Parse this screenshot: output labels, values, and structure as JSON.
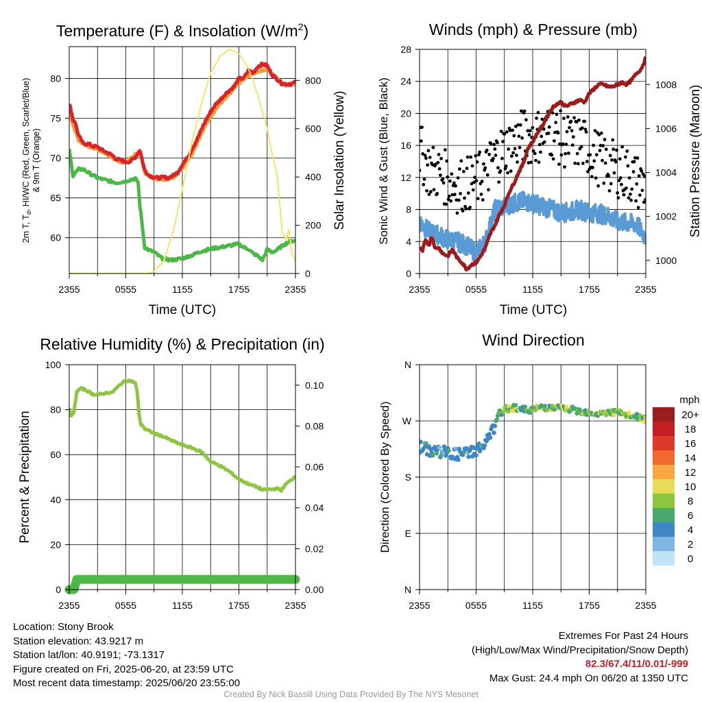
{
  "colors": {
    "temp_red": "#d7262a",
    "temp_green": "#4db848",
    "temp_orange": "#f39a3a",
    "insolation": "#f7e36a",
    "gust": "#000000",
    "wind": "#5b9bd5",
    "pressure": "#9b1c1c",
    "rh": "#8fc444",
    "precip": "#4db848",
    "extremes": "#c8202a"
  },
  "time_ticks": [
    "2355",
    "0555",
    "1155",
    "1755",
    "2355"
  ],
  "charts": {
    "temperature": {
      "title_a": "Temperature (F) & Insolation (W/m",
      "title_sup": "2",
      "title_b": ")",
      "ylabel_line1": "2m T, T",
      "ylabel_sub": "d",
      "ylabel_line1_rest": ", HI/WC (Red, Green, Scarlet/Blue)",
      "ylabel_line2": "& 9m T (Orange)",
      "y2label": "Solar Insolation (Yellow)",
      "xlabel": "Time (UTC)",
      "yticks": [
        "60",
        "65",
        "70",
        "75",
        "80"
      ],
      "y2ticks": [
        "0",
        "200",
        "400",
        "600",
        "800"
      ]
    },
    "winds": {
      "title": "Winds (mph) & Pressure (mb)",
      "ylabel": "Sonic Wind & Gust (Blue, Black)",
      "y2label": "Station Pressure (Maroon)",
      "xlabel": "Time (UTC)",
      "yticks": [
        "0",
        "4",
        "8",
        "12",
        "16",
        "20",
        "24",
        "28"
      ],
      "y2ticks": [
        "1000",
        "1002",
        "1004",
        "1006",
        "1008"
      ]
    },
    "humidity": {
      "title": "Relative Humidity (%) & Precipitation (in)",
      "ylabel": "Percent & Precipitation",
      "yticks": [
        "0",
        "20",
        "40",
        "60",
        "80",
        "100"
      ],
      "y2ticks": [
        "0.00",
        "0.02",
        "0.04",
        "0.06",
        "0.08",
        "0.10"
      ]
    },
    "direction": {
      "title": "Wind Direction",
      "ylabel": "Direction (Colored By Speed)",
      "yticks": [
        "N",
        "E",
        "S",
        "W",
        "N"
      ],
      "legend_title": "mph",
      "legend_labels": [
        "20+",
        "18",
        "16",
        "14",
        "12",
        "10",
        "8",
        "6",
        "4",
        "2",
        "0"
      ],
      "legend_colors": [
        "#9b1c1c",
        "#c21f24",
        "#dd3b2a",
        "#ef6a2c",
        "#f8a642",
        "#e8dc56",
        "#8cc63f",
        "#49a86e",
        "#3f86c4",
        "#7fb7e3",
        "#bfe3f7"
      ]
    }
  },
  "chart_data": [
    {
      "type": "line",
      "name": "temperature",
      "x_range_hours": [
        0,
        24
      ],
      "ylim": [
        55.5,
        84
      ],
      "y2lim": [
        0,
        940
      ],
      "series": [
        {
          "values_x": [
            0,
            0.15,
            0.4,
            0.6,
            1,
            1.5,
            2,
            2.5,
            3,
            3.5,
            4,
            4.5,
            5,
            5.5,
            6,
            6.5,
            7,
            7.5,
            8,
            8.5,
            9,
            9.5,
            10,
            10.5,
            11,
            11.5,
            12,
            12.5,
            13,
            13.5,
            14,
            14.5,
            15,
            15.5,
            16,
            16.5,
            17,
            17.5,
            18,
            18.5,
            19,
            19.5,
            20,
            20.5,
            21,
            21.5,
            22,
            22.5,
            23,
            23.5,
            24
          ],
          "values_y": [
            76.7,
            76.3,
            74.8,
            74.6,
            72.8,
            71.8,
            71.8,
            71.5,
            71.4,
            71.0,
            70.7,
            70.4,
            69.9,
            69.7,
            69.5,
            69.6,
            70.1,
            71.0,
            68.5,
            67.8,
            67.6,
            67.5,
            67.6,
            67.5,
            67.8,
            68.2,
            69.2,
            70.0,
            71.1,
            72.2,
            73.5,
            74.8,
            75.8,
            76.7,
            77.3,
            78.0,
            78.5,
            79.0,
            80.0,
            80.0,
            81.0,
            80.7,
            81.5,
            81.8,
            81.6,
            80.5,
            80.0,
            79.4,
            79.3,
            79.3,
            79.5
          ]
        },
        {
          "values_x": [
            0,
            0.4,
            1,
            1.5,
            2,
            3,
            4,
            5,
            6,
            6.5,
            7,
            7.3,
            7.5,
            7.8,
            8,
            8.5,
            9,
            9.5,
            10,
            11,
            12,
            13,
            14,
            15,
            16,
            17,
            18,
            18.5,
            19,
            19.5,
            20,
            20.5,
            21,
            21.5,
            22,
            22.5,
            23,
            23.5,
            24
          ],
          "values_y": [
            71.0,
            67.8,
            68.6,
            68.6,
            68.2,
            67.5,
            67.2,
            66.9,
            67.1,
            67.3,
            67.4,
            67.0,
            64.0,
            61.0,
            58.8,
            58.4,
            58.2,
            57.7,
            57.3,
            57.2,
            57.4,
            57.8,
            58.3,
            58.6,
            58.8,
            59.0,
            59.2,
            58.8,
            58.6,
            58.0,
            57.7,
            57.2,
            58.5,
            58.2,
            58.4,
            58.9,
            59.3,
            59.6,
            59.6
          ]
        },
        {
          "values_x": [
            0,
            0.4,
            1,
            2,
            3,
            4,
            5,
            6,
            7,
            7.5,
            8,
            9,
            10,
            11,
            12,
            13,
            14,
            15,
            16,
            17,
            18,
            19,
            20,
            21,
            22,
            23,
            24
          ],
          "values_y": [
            76.0,
            74.2,
            72.2,
            71.5,
            71.1,
            70.5,
            69.7,
            69.4,
            70.5,
            70.8,
            68.2,
            67.4,
            67.3,
            67.5,
            68.8,
            70.5,
            73.0,
            75.3,
            76.8,
            78.0,
            79.4,
            80.3,
            80.9,
            81.2,
            80.0,
            79.2,
            79.4
          ]
        },
        {
          "values_x": [
            0,
            1.5,
            3.5,
            6.5,
            7.5,
            8.5,
            9,
            10,
            11,
            12,
            13,
            14,
            15,
            16,
            17,
            18,
            19,
            20,
            21,
            21.6,
            22,
            22.3,
            22.6,
            23,
            23.3,
            23.6,
            24
          ],
          "values_y": [
            0,
            0,
            0,
            0,
            0,
            0,
            10,
            50,
            170,
            350,
            540,
            700,
            830,
            900,
            930,
            910,
            850,
            740,
            600,
            480,
            420,
            300,
            170,
            140,
            180,
            90,
            50
          ]
        }
      ]
    },
    {
      "type": "line",
      "name": "winds",
      "x_range_hours": [
        0,
        24
      ],
      "ylim": [
        0,
        28
      ],
      "y2lim": [
        999.4,
        1009.6
      ],
      "series": [
        {
          "values_x": [
            0,
            1,
            2,
            3,
            4,
            5,
            6,
            7,
            8,
            9,
            10,
            11,
            12,
            13,
            14,
            15,
            16,
            17,
            18,
            19,
            20,
            21,
            22,
            23,
            24
          ],
          "values_y": [
            15.5,
            13,
            12.5,
            11.8,
            11,
            11.2,
            11.5,
            12.5,
            14.5,
            15.5,
            16.2,
            17.2,
            17,
            17.3,
            17.8,
            16.8,
            16.3,
            16.5,
            15.4,
            14.4,
            13.5,
            13,
            12.5,
            11.5,
            11
          ]
        },
        {
          "values_x": [
            0,
            1,
            2,
            3,
            4,
            5,
            5.5,
            6,
            6.5,
            7,
            7.5,
            8,
            9,
            10,
            11,
            12,
            13,
            14,
            15,
            16,
            17,
            18,
            19,
            20,
            21,
            22,
            23,
            24
          ],
          "values_y": [
            6.5,
            5.2,
            4.8,
            4.2,
            4,
            3.5,
            3.0,
            2.6,
            3.2,
            4.0,
            6.0,
            8.0,
            8.4,
            8.8,
            9.0,
            8.8,
            8.4,
            8.0,
            7.6,
            7.7,
            8.0,
            7.6,
            7.5,
            7.2,
            6.5,
            6.3,
            6.2,
            4.5
          ]
        },
        {
          "values_x": [
            0,
            0.3,
            0.6,
            1,
            1.3,
            1.7,
            2,
            2.5,
            3,
            3.5,
            4,
            4.5,
            5,
            5.5,
            6,
            6.5,
            7,
            7.5,
            8,
            8.5,
            9,
            9.5,
            10,
            10.5,
            11,
            11.5,
            12,
            12.5,
            13,
            13.5,
            14,
            14.5,
            15,
            15.5,
            16,
            16.5,
            17,
            17.5,
            18,
            18.5,
            19,
            19.5,
            20,
            20.5,
            21,
            21.5,
            22,
            22.5,
            23,
            23.5,
            24
          ],
          "values_y": [
            1000.6,
            1000.4,
            1000.9,
            1000.7,
            1001.1,
            1000.5,
            1000.6,
            1000.3,
            1000.2,
            1000.5,
            1000.1,
            999.9,
            999.6,
            999.8,
            999.9,
            1000.2,
            1000.6,
            1001.2,
            1001.6,
            1002.1,
            1002.5,
            1003.1,
            1003.5,
            1004.0,
            1004.4,
            1005.1,
            1005.4,
            1005.8,
            1006.1,
            1006.5,
            1006.9,
            1007.1,
            1007.2,
            1007.0,
            1007.1,
            1007.2,
            1007.3,
            1007.2,
            1007.6,
            1007.8,
            1008.0,
            1008.0,
            1007.9,
            1007.9,
            1008.0,
            1008.1,
            1008.0,
            1008.2,
            1008.5,
            1008.7,
            1009.2
          ]
        }
      ]
    },
    {
      "type": "line",
      "name": "humidity",
      "x_range_hours": [
        0,
        24
      ],
      "ylim": [
        0,
        100
      ],
      "y2lim": [
        0,
        0.11
      ],
      "series": [
        {
          "values_x": [
            0,
            0.2,
            0.5,
            0.8,
            1.2,
            1.6,
            2,
            2.5,
            3,
            3.5,
            4,
            4.5,
            5,
            5.5,
            6,
            6.5,
            7,
            7.2,
            7.4,
            7.6,
            7.8,
            8,
            8.5,
            9,
            10,
            11,
            12,
            13,
            14,
            15,
            16,
            17,
            18,
            19,
            20,
            20.5,
            21,
            21.5,
            22,
            22.5,
            23,
            23.5,
            24
          ],
          "values_y": [
            81,
            77,
            79,
            88,
            89.5,
            89,
            88.2,
            86.8,
            86.8,
            86.9,
            87.6,
            87.5,
            89.5,
            91.5,
            93,
            92.8,
            92,
            88,
            78.5,
            73.2,
            73,
            71.5,
            70.5,
            69.5,
            68,
            66,
            64.3,
            63,
            61.3,
            57,
            55,
            52.5,
            49,
            47,
            45.5,
            44.2,
            44.7,
            44.5,
            45,
            44.2,
            47,
            48.5,
            50.5
          ]
        },
        {
          "values_x": [
            0,
            0.5,
            0.8,
            24
          ],
          "values_y": [
            0,
            0,
            0.005,
            0.005
          ]
        }
      ]
    },
    {
      "type": "scatter",
      "name": "direction",
      "x_range_hours": [
        0,
        24
      ],
      "ylim": [
        0,
        360
      ],
      "series": [
        {
          "values_x": [
            0,
            1,
            2,
            3,
            4,
            5,
            6,
            7,
            7.5,
            8,
            8.5,
            9,
            10,
            11,
            12,
            13,
            14,
            15,
            16,
            17,
            18,
            19,
            20,
            21,
            22,
            23,
            24
          ],
          "values_y": [
            228,
            223,
            222,
            218,
            216,
            218,
            224,
            232,
            248,
            262,
            282,
            288,
            292,
            288,
            288,
            293,
            290,
            291,
            288,
            286,
            284,
            281,
            284,
            283,
            279,
            277,
            272
          ]
        }
      ]
    }
  ],
  "info": {
    "location": "Location: Stony Brook",
    "elevation": "Station elevation: 43.9217 m",
    "latlon": "Station lat/lon: 40.9191; -73.1317",
    "created": "Figure created on Fri, 2025-06-20, at 23:59 UTC",
    "recent": "Most recent data timestamp: 2025/06/20 23:55:00"
  },
  "extremes": {
    "line1": "Extremes For Past 24 Hours",
    "line2": "(High/Low/Max Wind/Precipitation/Snow Depth)",
    "values": "82.3/67.4/11/0.01/-999",
    "gust": "Max Gust: 24.4 mph On 06/20 at 1350 UTC"
  },
  "credit": "Created By Nick Bassill Using Data Provided By The NYS Mesonet"
}
